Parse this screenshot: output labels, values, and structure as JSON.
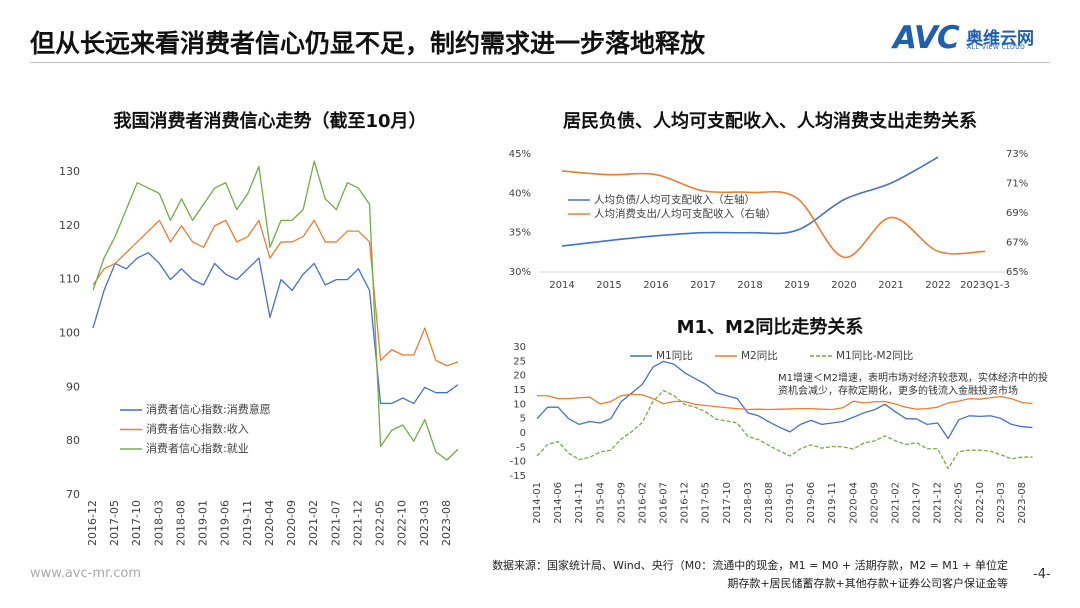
{
  "header": {
    "title": "但从长远来看消费者信心仍显不足，制约需求进一步落地释放"
  },
  "logo": {
    "brand": "AVC",
    "name": "奥维云网",
    "sub": "ALL VIEW CLOUD"
  },
  "footer": {
    "source": "数据来源：国家统计局、Wind、央行（M0：流通中的现金，M1 = M0 + 活期存款，M2 = M1 + 单位定期存款+居民储蓄存款+其他存款+证券公司客户保证金等",
    "website": "www.avc-mr.com",
    "page": "-4-"
  },
  "chart_data": [
    {
      "type": "line",
      "title": "我国消费者消费信心走势（截至10月）",
      "legend": "lower left",
      "smooth": false,
      "categories": [
        "2016-12",
        null,
        "2017-05",
        null,
        "2017-10",
        null,
        "2018-03",
        null,
        "2018-08",
        null,
        "2019-01",
        null,
        "2019-06",
        null,
        "2019-11",
        null,
        "2020-04",
        null,
        "2020-09",
        null,
        "2021-02",
        null,
        "2021-07",
        null,
        "2021-12",
        null,
        "2022-05",
        null,
        "2022-10",
        null,
        "2023-03",
        null,
        "2023-08",
        null
      ],
      "ylim": [
        70,
        135
      ],
      "yticks": [
        70,
        80,
        90,
        100,
        110,
        120,
        130
      ],
      "series": [
        {
          "name": "消费者信心指数:消费意愿",
          "color": "#4472c4",
          "values": [
            101,
            108,
            113,
            112,
            114,
            115,
            113,
            110,
            112,
            110,
            109,
            113,
            111,
            110,
            112,
            114,
            103,
            110,
            108,
            111,
            113,
            109,
            110,
            110,
            112,
            108,
            87,
            87,
            88,
            87,
            90,
            89,
            89,
            90.5
          ]
        },
        {
          "name": "消费者信心指数:收入",
          "color": "#ed7d31",
          "values": [
            109,
            112,
            113,
            115,
            117,
            119,
            121,
            117,
            120,
            117,
            116,
            120,
            121,
            117,
            118,
            121,
            114,
            117,
            117,
            118,
            121,
            117,
            117,
            119,
            119,
            117,
            95,
            97,
            96,
            96,
            101,
            95,
            94,
            94.7
          ]
        },
        {
          "name": "消费者信心指数:就业",
          "color": "#70ad47",
          "values": [
            108,
            114,
            118,
            123,
            128,
            127,
            126,
            121,
            125,
            121,
            124,
            127,
            128,
            123,
            126,
            131,
            116,
            121,
            121,
            123,
            132,
            125,
            123,
            128,
            127,
            124,
            79,
            82,
            83,
            80,
            84,
            78,
            76.5,
            78.5
          ]
        }
      ]
    },
    {
      "type": "line",
      "title": "居民负债、人均可支配收入、人均消费支出走势关系",
      "legend": "upper left",
      "smooth": true,
      "categories": [
        "2014",
        "2015",
        "2016",
        "2017",
        "2018",
        "2019",
        "2020",
        "2021",
        "2022",
        "2023Q1-3"
      ],
      "ylim": [
        30,
        45
      ],
      "yticks": [
        {
          "value": 30,
          "label": "30%"
        },
        {
          "value": 35,
          "label": "35%"
        },
        {
          "value": 40,
          "label": "40%"
        },
        {
          "value": 45,
          "label": "45%"
        }
      ],
      "y2lim": [
        65,
        73
      ],
      "y2ticks": [
        {
          "value": 65,
          "label": "65%"
        },
        {
          "value": 67,
          "label": "67%"
        },
        {
          "value": 69,
          "label": "69%"
        },
        {
          "value": 71,
          "label": "71%"
        },
        {
          "value": 73,
          "label": "73%"
        }
      ],
      "series": [
        {
          "name": "人均负债/人均可支配收入（左轴）",
          "color": "#4472c4",
          "values": [
            33.3,
            34.0,
            34.6,
            35.0,
            35.0,
            35.3,
            39.2,
            41.3,
            44.6,
            null
          ]
        },
        {
          "name": "人均消费支出/人均可支配收入（右轴）",
          "color": "#ed7d31",
          "axis": "y2",
          "values": [
            71.85,
            71.6,
            71.6,
            70.5,
            70.4,
            70.0,
            66.0,
            68.7,
            66.4,
            66.4
          ]
        }
      ]
    },
    {
      "type": "line",
      "title": "M1、M2同比走势关系",
      "legend": "top",
      "smooth": false,
      "annotation": "M1增速＜M2增速，表明市场对经济较悲观，实体经济中的投资机会减少，存款定期化，更多的钱流入金融投资市场",
      "categories": [
        "2014-01",
        null,
        "2014-06",
        null,
        "2014-11",
        null,
        "2015-04",
        null,
        "2015-09",
        null,
        "2016-02",
        null,
        "2016-07",
        null,
        "2016-12",
        null,
        "2017-05",
        null,
        "2017-10",
        null,
        "2018-03",
        null,
        "2018-08",
        null,
        "2019-01",
        null,
        "2019-06",
        null,
        "2019-11",
        null,
        "2020-04",
        null,
        "2020-09",
        null,
        "2021-02",
        null,
        "2021-07",
        null,
        "2021-12",
        null,
        "2022-05",
        null,
        "2022-10",
        null,
        "2023-03",
        null,
        "2023-08",
        null
      ],
      "ylim": [
        -15,
        30
      ],
      "yticks": [
        -15,
        -10,
        -5,
        0,
        5,
        10,
        15,
        20,
        25,
        30
      ],
      "series": [
        {
          "name": "M1同比",
          "color": "#4472c4",
          "values": [
            5,
            9,
            9,
            5,
            3,
            4,
            3.5,
            5,
            11,
            14,
            17,
            23,
            25,
            24,
            21,
            19,
            17,
            14,
            13,
            12,
            7,
            6,
            3.9,
            2,
            0.4,
            3,
            4.4,
            3,
            3.5,
            4,
            5.5,
            7,
            8.1,
            10,
            7.4,
            5,
            4.9,
            3,
            3.5,
            -1.9,
            4.6,
            6,
            5.8,
            6,
            5.1,
            3,
            2.2,
            1.9
          ]
        },
        {
          "name": "M2同比",
          "color": "#ed7d31",
          "values": [
            13,
            13,
            12,
            12,
            12.3,
            12.5,
            10.1,
            11,
            13,
            13.5,
            13.3,
            12,
            10.2,
            11,
            11,
            10,
            9.6,
            9.2,
            8.8,
            8.5,
            8.2,
            8.3,
            8.2,
            8.3,
            8.4,
            8.5,
            8.5,
            8.3,
            8.2,
            8.8,
            11.1,
            10.5,
            10.9,
            11,
            10.1,
            9,
            8.3,
            8.5,
            9,
            10.5,
            11.1,
            12,
            11.8,
            12.3,
            12.7,
            12,
            10.6,
            10.3
          ]
        },
        {
          "name": "M1同比-M2同比",
          "color": "#70ad47",
          "line_style": "dashed",
          "values": [
            -8,
            -4,
            -3,
            -7,
            -9.3,
            -8.5,
            -6.6,
            -6,
            -2,
            0.5,
            3.7,
            11,
            14.8,
            13,
            10,
            9,
            7.4,
            4.8,
            4.2,
            3.5,
            -1.2,
            -2.3,
            -4.3,
            -6.3,
            -8,
            -5.5,
            -4.1,
            -5.3,
            -4.7,
            -4.8,
            -5.6,
            -3.5,
            -2.8,
            -1,
            -2.7,
            -4,
            -3.4,
            -5.5,
            -5.5,
            -12.4,
            -6.5,
            -6,
            -6,
            -6.3,
            -7.6,
            -9,
            -8.4,
            -8.4
          ]
        }
      ]
    }
  ]
}
